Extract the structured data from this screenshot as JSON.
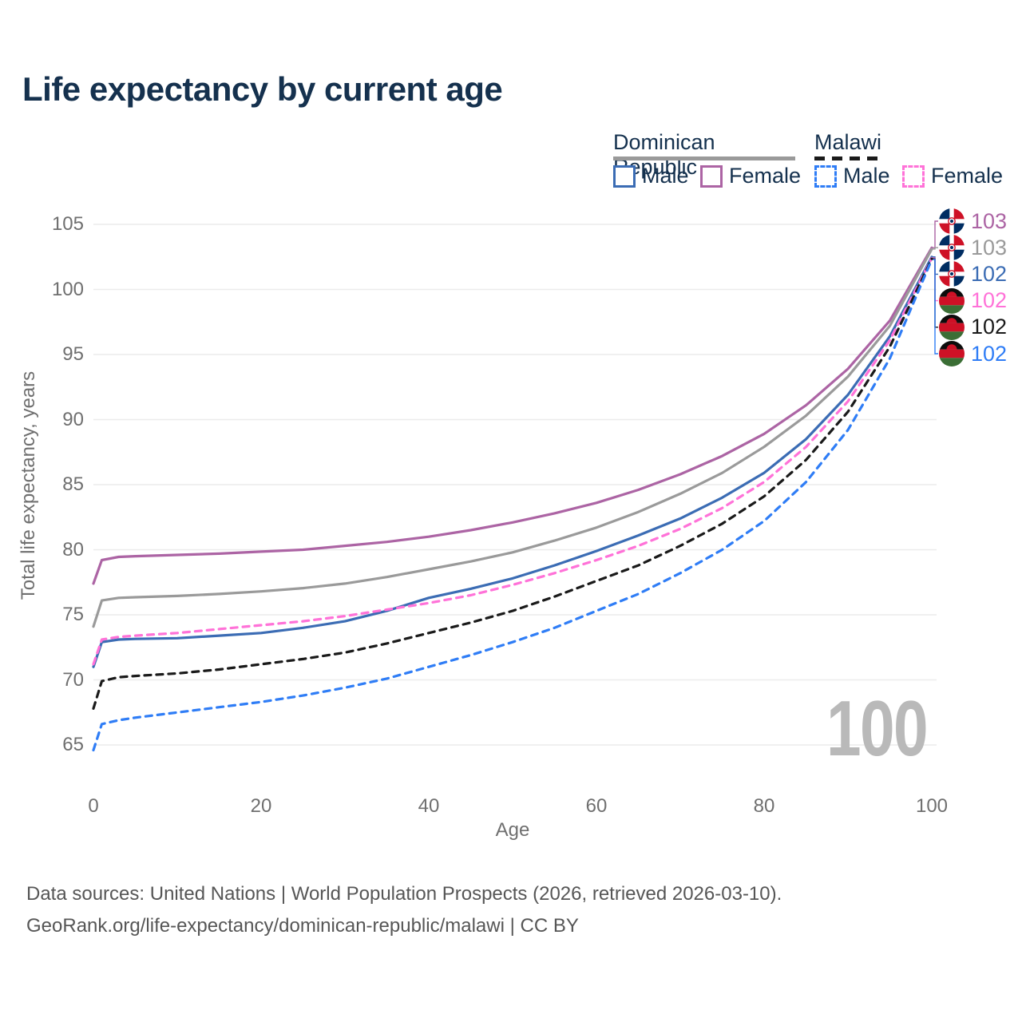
{
  "title": "Life expectancy by current age",
  "legend": {
    "groups": [
      {
        "label": "Dominican Republic",
        "line_color": "#9a9a9a",
        "line_dash": "solid",
        "items": [
          {
            "label": "Male",
            "color": "#3b6cb4",
            "dash": "solid"
          },
          {
            "label": "Female",
            "color": "#ac64a4",
            "dash": "solid"
          }
        ]
      },
      {
        "label": "Malawi",
        "line_color": "#1a1a1a",
        "line_dash": "dashed",
        "items": [
          {
            "label": "Male",
            "color": "#2f7df6",
            "dash": "dashed"
          },
          {
            "label": "Female",
            "color": "#ff72d8",
            "dash": "dashed"
          }
        ]
      }
    ]
  },
  "watermark": "100",
  "footer": {
    "line1": "Data sources: United Nations | World Population Prospects (2026, retrieved 2026-03-10).",
    "line2": "GeoRank.org/life-expectancy/dominican-republic/malawi | CC BY"
  },
  "chart_data": {
    "type": "line",
    "title": "Life expectancy by current age",
    "xlabel": "Age",
    "ylabel": "Total life expectancy, years",
    "xlim": [
      0,
      100
    ],
    "ylim": [
      65,
      105
    ],
    "x_ticks": [
      0,
      20,
      40,
      60,
      80,
      100
    ],
    "y_ticks": [
      65,
      70,
      75,
      80,
      85,
      90,
      95,
      100,
      105
    ],
    "grid": "horizontal",
    "legend_position": "top-right",
    "x": [
      0,
      1,
      3,
      5,
      10,
      15,
      20,
      25,
      30,
      35,
      40,
      45,
      50,
      55,
      60,
      65,
      70,
      75,
      80,
      85,
      90,
      95,
      100
    ],
    "series": [
      {
        "name": "Dominican Republic Female",
        "country": "Dominican Republic",
        "sex": "Female",
        "flag": "do",
        "color": "#ac64a4",
        "dash": "solid",
        "end_label": "103",
        "values": [
          77.4,
          79.2,
          79.45,
          79.5,
          79.6,
          79.7,
          79.85,
          80.0,
          80.3,
          80.6,
          81.0,
          81.5,
          82.1,
          82.8,
          83.6,
          84.6,
          85.8,
          87.2,
          88.9,
          91.1,
          93.9,
          97.6,
          103.2
        ]
      },
      {
        "name": "Dominican Republic Total",
        "country": "Dominican Republic",
        "sex": "Total",
        "flag": "do",
        "color": "#9a9a9a",
        "dash": "solid",
        "end_label": "103",
        "values": [
          74.1,
          76.1,
          76.3,
          76.35,
          76.45,
          76.6,
          76.8,
          77.05,
          77.4,
          77.9,
          78.5,
          79.1,
          79.8,
          80.7,
          81.7,
          82.9,
          84.3,
          85.9,
          87.9,
          90.3,
          93.3,
          97.2,
          103.1
        ]
      },
      {
        "name": "Dominican Republic Male",
        "country": "Dominican Republic",
        "sex": "Male",
        "flag": "do",
        "color": "#3b6cb4",
        "dash": "solid",
        "end_label": "102",
        "values": [
          71.0,
          72.9,
          73.1,
          73.15,
          73.2,
          73.4,
          73.6,
          74.0,
          74.5,
          75.3,
          76.3,
          77.0,
          77.8,
          78.8,
          79.9,
          81.1,
          82.4,
          84.0,
          85.9,
          88.5,
          91.9,
          96.4,
          102.5
        ]
      },
      {
        "name": "Malawi Female",
        "country": "Malawi",
        "sex": "Female",
        "flag": "mw",
        "color": "#ff72d8",
        "dash": "dashed",
        "end_label": "102",
        "values": [
          71.2,
          73.1,
          73.3,
          73.4,
          73.6,
          73.9,
          74.2,
          74.5,
          74.9,
          75.4,
          75.9,
          76.5,
          77.3,
          78.2,
          79.2,
          80.3,
          81.6,
          83.2,
          85.2,
          87.9,
          91.4,
          96.1,
          102.4
        ]
      },
      {
        "name": "Malawi Total",
        "country": "Malawi",
        "sex": "Total",
        "flag": "mw",
        "color": "#1a1a1a",
        "dash": "dashed",
        "end_label": "102",
        "values": [
          67.8,
          69.9,
          70.2,
          70.3,
          70.5,
          70.8,
          71.2,
          71.6,
          72.1,
          72.8,
          73.6,
          74.4,
          75.3,
          76.4,
          77.6,
          78.8,
          80.3,
          82.0,
          84.1,
          86.9,
          90.6,
          95.6,
          102.35
        ]
      },
      {
        "name": "Malawi Male",
        "country": "Malawi",
        "sex": "Male",
        "flag": "mw",
        "color": "#2f7df6",
        "dash": "dashed",
        "end_label": "102",
        "values": [
          64.6,
          66.6,
          66.9,
          67.1,
          67.5,
          67.9,
          68.3,
          68.8,
          69.4,
          70.1,
          71.0,
          71.9,
          72.9,
          74.0,
          75.3,
          76.6,
          78.2,
          80.0,
          82.2,
          85.2,
          89.2,
          94.7,
          102.3
        ]
      }
    ]
  }
}
